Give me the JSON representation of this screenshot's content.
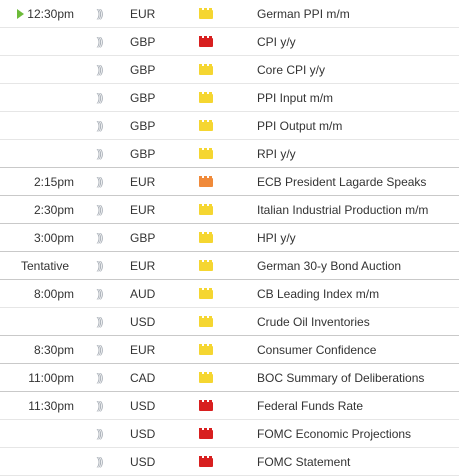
{
  "impact_colors": {
    "low": "#f5d631",
    "medium": "#f08a3a",
    "high": "#d81f1f"
  },
  "events": [
    {
      "time": "12:30pm",
      "current": true,
      "currency": "EUR",
      "impact": "low",
      "title": "German PPI m/m"
    },
    {
      "time": "",
      "currency": "GBP",
      "impact": "high",
      "title": "CPI y/y"
    },
    {
      "time": "",
      "currency": "GBP",
      "impact": "low",
      "title": "Core CPI y/y"
    },
    {
      "time": "",
      "currency": "GBP",
      "impact": "low",
      "title": "PPI Input m/m"
    },
    {
      "time": "",
      "currency": "GBP",
      "impact": "low",
      "title": "PPI Output m/m"
    },
    {
      "time": "",
      "currency": "GBP",
      "impact": "low",
      "title": "RPI y/y",
      "group_end": true
    },
    {
      "time": "2:15pm",
      "currency": "EUR",
      "impact": "medium",
      "title": "ECB President Lagarde Speaks",
      "group_end": true
    },
    {
      "time": "2:30pm",
      "currency": "EUR",
      "impact": "low",
      "title": "Italian Industrial Production m/m",
      "group_end": true
    },
    {
      "time": "3:00pm",
      "currency": "GBP",
      "impact": "low",
      "title": "HPI y/y",
      "group_end": true
    },
    {
      "time": "Tentative",
      "tentative": true,
      "currency": "EUR",
      "impact": "low",
      "title": "German 30-y Bond Auction",
      "group_end": true
    },
    {
      "time": "8:00pm",
      "currency": "AUD",
      "impact": "low",
      "title": "CB Leading Index m/m"
    },
    {
      "time": "",
      "currency": "USD",
      "impact": "low",
      "title": "Crude Oil Inventories",
      "group_end": true
    },
    {
      "time": "8:30pm",
      "currency": "EUR",
      "impact": "low",
      "title": "Consumer Confidence",
      "group_end": true
    },
    {
      "time": "11:00pm",
      "currency": "CAD",
      "impact": "low",
      "title": "BOC Summary of Deliberations",
      "group_end": true
    },
    {
      "time": "11:30pm",
      "currency": "USD",
      "impact": "high",
      "title": "Federal Funds Rate"
    },
    {
      "time": "",
      "currency": "USD",
      "impact": "high",
      "title": "FOMC Economic Projections"
    },
    {
      "time": "",
      "currency": "USD",
      "impact": "high",
      "title": "FOMC Statement"
    }
  ],
  "icons": {
    "sound": "sound-wave-icon",
    "impact": "folder-impact-icon",
    "now": "play-arrow-icon"
  }
}
